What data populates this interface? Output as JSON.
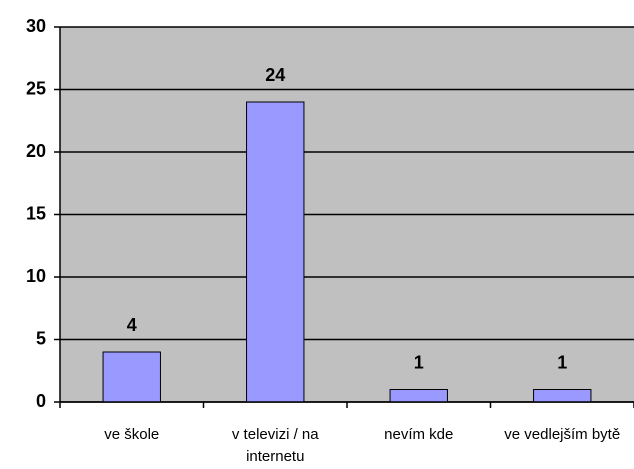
{
  "chart_data": {
    "type": "bar",
    "categories": [
      "ve škole",
      "v televizi / na internetu",
      "nevím kde",
      "ve vedlejším bytě"
    ],
    "values": [
      4,
      24,
      1,
      1
    ],
    "color": "#9999ff",
    "ylim": [
      0,
      30
    ],
    "yticks": [
      0,
      5,
      10,
      15,
      20,
      25,
      30
    ],
    "grid": true
  }
}
